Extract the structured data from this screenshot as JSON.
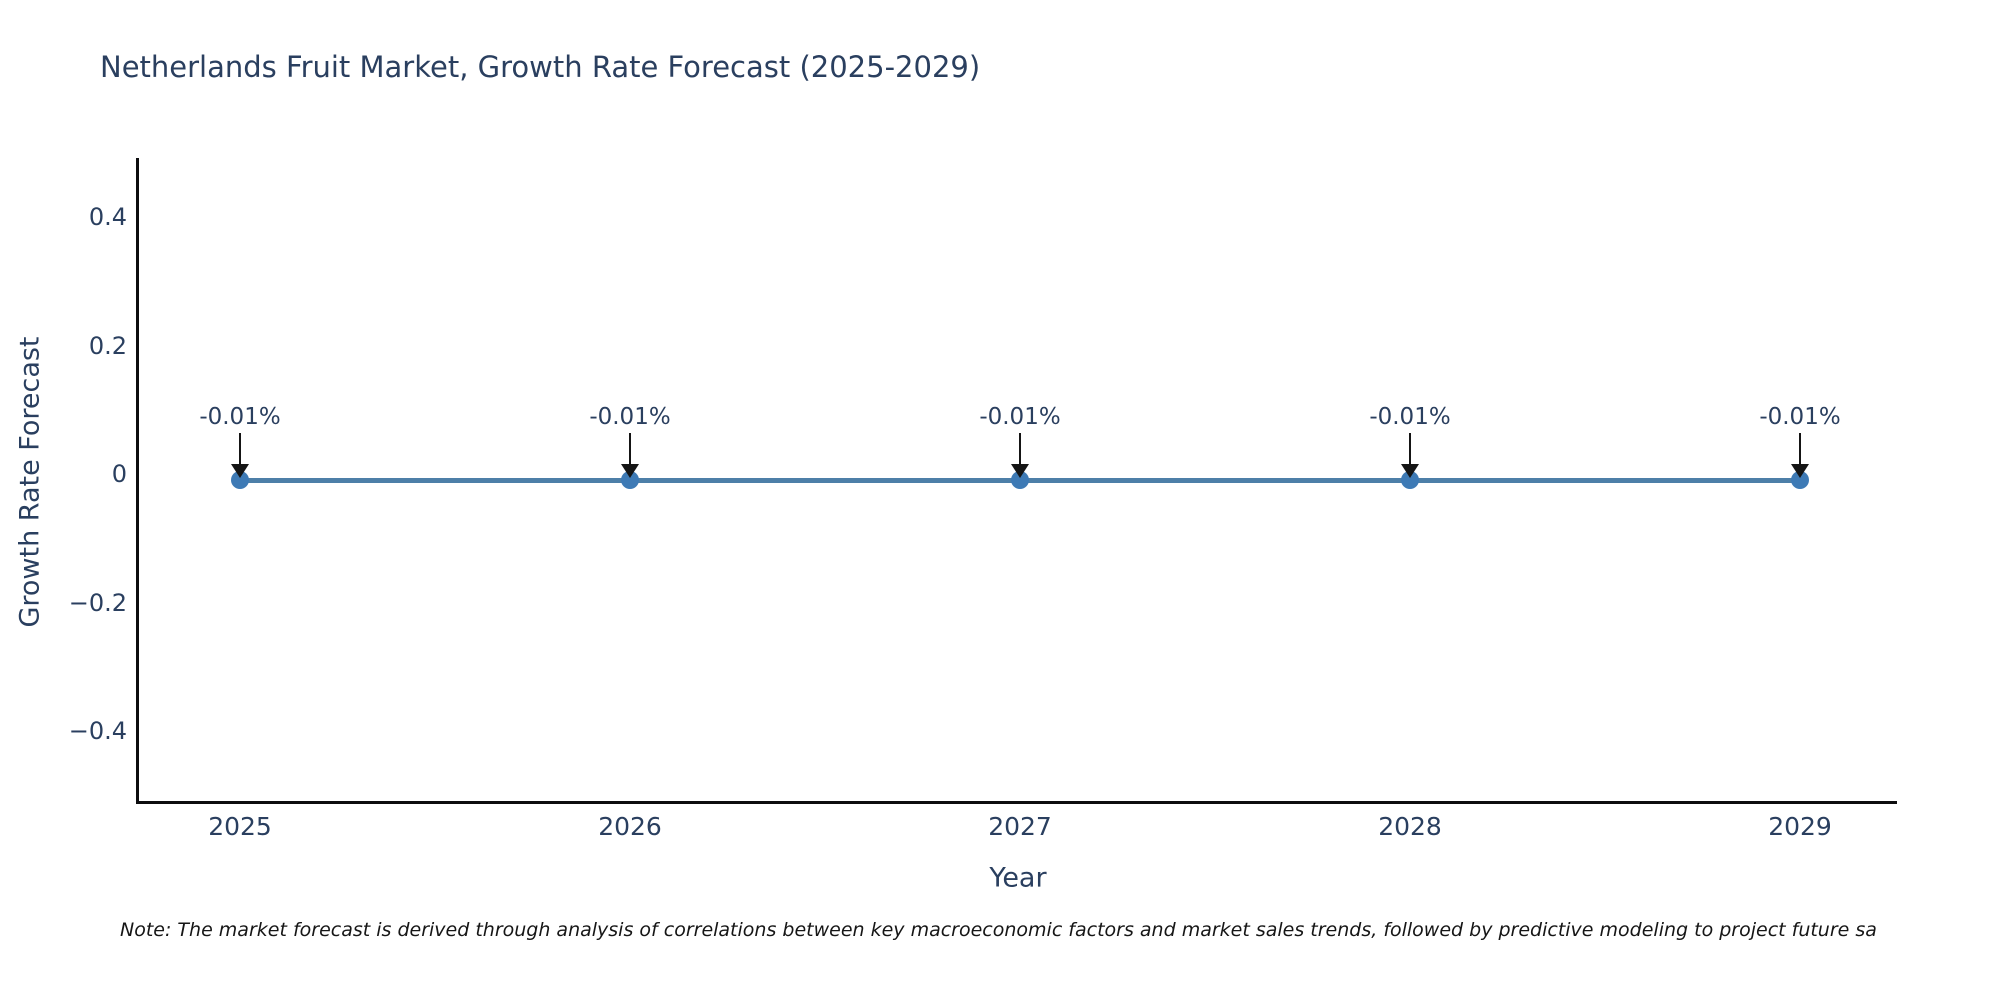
{
  "title": "Netherlands Fruit Market, Growth Rate Forecast (2025-2029)",
  "footnote": "Note: The market forecast is derived through analysis of correlations between key macroeconomic factors and market sales trends, followed by predictive modeling to project future sa",
  "chart_data": {
    "type": "line",
    "title": "Netherlands Fruit Market, Growth Rate Forecast (2025-2029)",
    "xlabel": "Year",
    "ylabel": "Growth Rate Forecast",
    "x": [
      2025,
      2026,
      2027,
      2028,
      2029
    ],
    "series": [
      {
        "name": "Growth Rate Forecast",
        "values": [
          -0.01,
          -0.01,
          -0.01,
          -0.01,
          -0.01
        ]
      }
    ],
    "point_annotations": [
      "-0.01%",
      "-0.01%",
      "-0.01%",
      "-0.01%",
      "-0.01%"
    ],
    "xtick_labels": [
      "2025",
      "2026",
      "2027",
      "2028",
      "2029"
    ],
    "ytick_values": [
      0.4,
      0.2,
      0,
      -0.2,
      -0.4
    ],
    "ytick_labels": [
      "0.4",
      "0.2",
      "0",
      "−0.2",
      "−0.4"
    ],
    "ylim": [
      -0.51,
      0.49
    ],
    "grid": false,
    "legend": false,
    "colors": {
      "line": "#4d7fa8",
      "marker": "#3e7ab5",
      "axis_line": "#0d0d0f",
      "text": "#2a3f5f",
      "annotation_arrow": "#151515",
      "note_text": "#161616"
    }
  }
}
